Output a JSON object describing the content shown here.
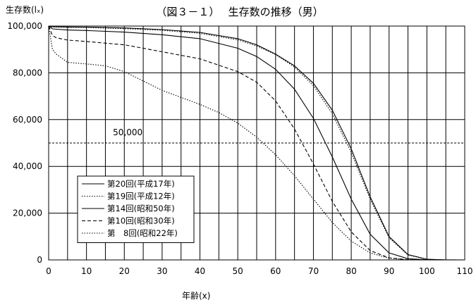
{
  "chart_data": {
    "type": "line",
    "title": "（図３－１）　 生存数の推移（男）",
    "ylabel": "生存数(lₓ)",
    "xlabel": "年齢(x)",
    "xlim": [
      0,
      110
    ],
    "ylim": [
      0,
      100000
    ],
    "x_ticks": [
      0,
      10,
      20,
      30,
      40,
      50,
      60,
      70,
      80,
      90,
      100,
      110
    ],
    "y_ticks": [
      0,
      20000,
      40000,
      60000,
      80000,
      100000
    ],
    "x_tick_labels": [
      "0",
      "10",
      "20",
      "30",
      "40",
      "50",
      "60",
      "70",
      "80",
      "90",
      "100",
      "110"
    ],
    "y_tick_labels": [
      "0",
      "20,000",
      "40,000",
      "60,000",
      "80,000",
      "100,000"
    ],
    "grid": {
      "vertical_every": 5,
      "horizontal_every": 20000
    },
    "reference_line": {
      "y": 50000,
      "label": "50,000"
    },
    "legend_position": "lower-left",
    "series": [
      {
        "name": "第20回(平成17年)",
        "style": "solid",
        "x": [
          0,
          1,
          5,
          10,
          20,
          30,
          40,
          50,
          55,
          60,
          65,
          70,
          75,
          80,
          85,
          90,
          95,
          100,
          105,
          110
        ],
        "values": [
          100000,
          99700,
          99600,
          99550,
          99200,
          98500,
          97300,
          94600,
          92000,
          88000,
          83000,
          75500,
          64000,
          47500,
          27000,
          10000,
          2300,
          300,
          30,
          0
        ]
      },
      {
        "name": "第19回(平成12年)",
        "style": "dotted",
        "x": [
          0,
          1,
          5,
          10,
          20,
          30,
          40,
          50,
          55,
          60,
          65,
          70,
          75,
          80,
          85,
          90,
          95,
          100,
          105,
          110
        ],
        "values": [
          100000,
          99600,
          99450,
          99400,
          98900,
          98200,
          96900,
          94100,
          91500,
          87800,
          82500,
          74500,
          62500,
          46000,
          26000,
          9500,
          2100,
          250,
          20,
          0
        ]
      },
      {
        "name": "第14回(昭和50年)",
        "style": "solid",
        "x": [
          0,
          1,
          5,
          10,
          20,
          30,
          40,
          50,
          55,
          60,
          65,
          70,
          75,
          80,
          85,
          90,
          95,
          100,
          105
        ],
        "values": [
          100000,
          98800,
          98300,
          98100,
          97400,
          96300,
          94600,
          90500,
          87000,
          81500,
          73000,
          60500,
          44000,
          26000,
          11000,
          3000,
          500,
          50,
          0
        ]
      },
      {
        "name": "第10回(昭和30年)",
        "style": "dashed",
        "x": [
          0,
          1,
          2,
          5,
          10,
          20,
          25,
          30,
          40,
          50,
          55,
          60,
          65,
          70,
          75,
          80,
          85,
          90,
          95,
          100
        ],
        "values": [
          100000,
          96000,
          95000,
          94000,
          93400,
          92000,
          90500,
          89000,
          86000,
          80500,
          76000,
          68000,
          56000,
          41000,
          25000,
          12000,
          4000,
          900,
          100,
          0
        ]
      },
      {
        "name": "第　8回(昭和22年)",
        "style": "dotted",
        "x": [
          0,
          1,
          2,
          5,
          10,
          15,
          20,
          25,
          30,
          35,
          40,
          45,
          50,
          55,
          60,
          65,
          70,
          75,
          80,
          85,
          90,
          95,
          100
        ],
        "values": [
          100000,
          90000,
          88000,
          84500,
          83800,
          83000,
          80500,
          76500,
          72500,
          69500,
          66500,
          63000,
          58500,
          52500,
          45000,
          36000,
          26000,
          16000,
          8000,
          3000,
          700,
          100,
          0
        ]
      }
    ]
  }
}
